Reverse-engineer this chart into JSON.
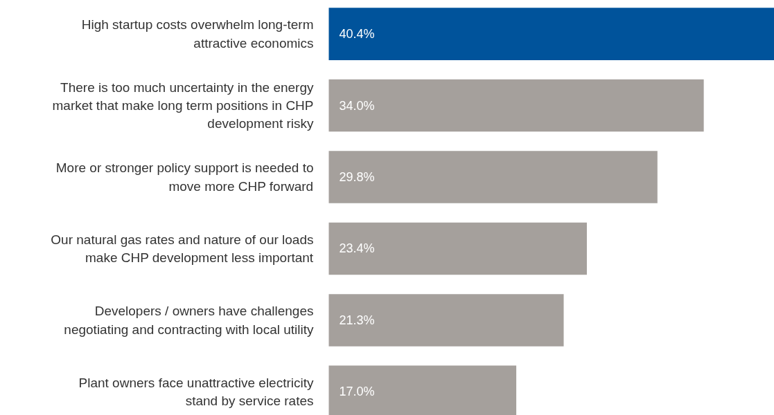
{
  "chart_data": {
    "type": "bar",
    "orientation": "horizontal",
    "categories": [
      "High startup costs overwhelm long-term attractive economics",
      "There is too much uncertainty in the energy market that make long term positions in CHP development risky",
      "More or stronger policy support is needed to move more CHP forward",
      "Our natural gas rates and nature of our loads make CHP development less important",
      "Developers / owners have challenges negotiating and contracting with local utility",
      "Plant owners face unattractive electricity stand by service rates"
    ],
    "values": [
      40.4,
      34.0,
      29.8,
      23.4,
      21.3,
      17.0
    ],
    "value_labels": [
      "40.4%",
      "34.0%",
      "29.8%",
      "23.4%",
      "21.3%",
      "17.0%"
    ],
    "colors": [
      "#00539b",
      "#a5a09c",
      "#a5a09c",
      "#a5a09c",
      "#a5a09c",
      "#a5a09c"
    ]
  }
}
